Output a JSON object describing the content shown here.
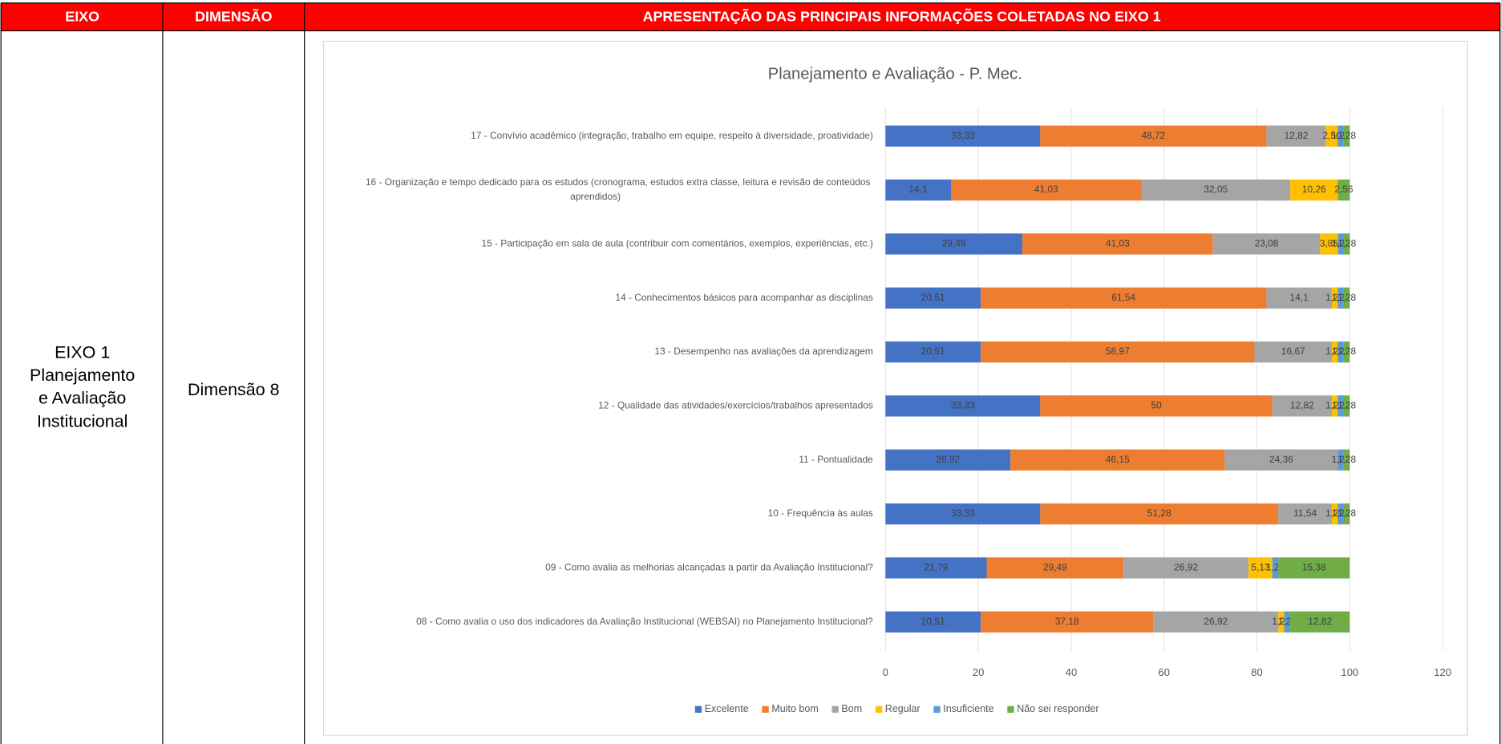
{
  "table": {
    "header": [
      "EIXO",
      "DIMENSÃO",
      "APRESENTAÇÃO DAS PRINCIPAIS INFORMAÇÕES COLETADAS NO EIXO 1"
    ],
    "rows": [
      [
        [
          "EIXO 1",
          "Planejamento",
          "e Avaliação",
          "Institucional"
        ],
        "Dimensão 8"
      ]
    ]
  },
  "chart_data": {
    "type": "bar",
    "orientation": "horizontal",
    "stacked": true,
    "title": "Planejamento e Avaliação - P. Mec.",
    "categories": [
      "17 - Convívio acadêmico (integração, trabalho em equipe, respeito à diversidade, proatividade)",
      "16 - Organização e tempo dedicado para os estudos (cronograma, estudos extra classe, leitura e revisão de conteúdos aprendidos)",
      "15 - Participação em sala de aula (contribuir com comentários, exemplos, experiências, etc.)",
      "14 - Conhecimentos básicos para acompanhar as disciplinas",
      "13 - Desempenho nas avaliações da aprendizagem",
      "12 - Qualidade das atividades/exercícios/trabalhos apresentados",
      "11 - Pontualidade",
      "10 - Frequência às aulas",
      "09 - Como avalia as melhorias alcançadas a partir da Avaliação Institucional?",
      "08 - Como avalia o uso dos indicadores da Avaliação Institucional (WEBSAI) no Planejamento Institucional?"
    ],
    "series": [
      {
        "name": "Excelente",
        "color": "#4472c4",
        "values": [
          33.33,
          14.1,
          29.49,
          20.51,
          20.51,
          33.33,
          26.92,
          33.33,
          21.79,
          20.51
        ],
        "value_labels": [
          "33,33",
          "14,1",
          "29,49",
          "20,51",
          "20,51",
          "33,33",
          "26,92",
          "33,33",
          "21,79",
          "20,51"
        ]
      },
      {
        "name": "Muito bom",
        "color": "#ed7d31",
        "values": [
          48.72,
          41.03,
          41.03,
          61.54,
          58.97,
          50,
          46.15,
          51.28,
          29.49,
          37.18
        ],
        "value_labels": [
          "48,72",
          "41,03",
          "41,03",
          "61,54",
          "58,97",
          "50",
          "46,15",
          "51,28",
          "29,49",
          "37,18"
        ]
      },
      {
        "name": "Bom",
        "color": "#a5a5a5",
        "values": [
          12.82,
          32.05,
          23.08,
          14.1,
          16.67,
          12.82,
          24.36,
          11.54,
          26.92,
          26.92
        ],
        "value_labels": [
          "12,82",
          "32,05",
          "23,08",
          "14,1",
          "16,67",
          "12,82",
          "24,36",
          "11,54",
          "26,92",
          "26,92"
        ]
      },
      {
        "name": "Regular",
        "color": "#ffc000",
        "values": [
          2.56,
          10.26,
          3.85,
          1.28,
          1.28,
          1.28,
          null,
          1.28,
          5.13,
          1.28
        ],
        "value_labels": [
          "2,56",
          "10,26",
          "3,85",
          "1,28",
          "1,28",
          "1,28",
          null,
          "1,28",
          "5,13",
          "1,28"
        ]
      },
      {
        "name": "Insuficiente",
        "color": "#5b9bd5",
        "values": [
          1.28,
          null,
          1.28,
          1.28,
          1.28,
          1.28,
          1.28,
          1.28,
          1.28,
          1.28
        ],
        "value_labels": [
          "1,28",
          null,
          "1,28",
          "1,28",
          "1,28",
          "1,28",
          "1,28",
          "1,28",
          "1,28",
          "1,28"
        ]
      },
      {
        "name": "Não sei responder",
        "color": "#70ad47",
        "values": [
          1.28,
          2.56,
          1.28,
          1.28,
          1.28,
          1.28,
          1.28,
          1.28,
          15.38,
          12.82
        ],
        "value_labels": [
          "1,28",
          "2,56",
          "1,28",
          "1,28",
          "1,28",
          "1,28",
          "1,28",
          "1,28",
          "15,38",
          "12,82"
        ]
      }
    ],
    "xlim": [
      0,
      120
    ],
    "xticks": [
      0,
      20,
      40,
      60,
      80,
      100,
      120
    ],
    "grid": true,
    "legend": "bottom"
  }
}
